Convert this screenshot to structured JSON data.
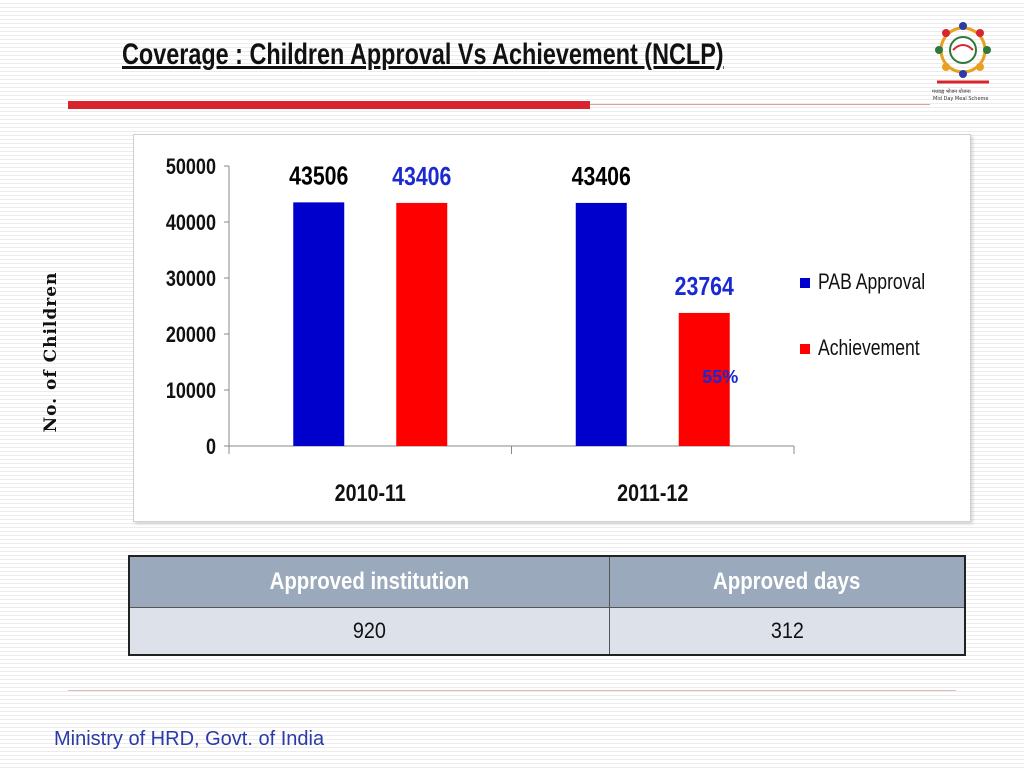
{
  "slide": {
    "title": "Coverage : Children Approval Vs Achievement (NCLP)",
    "footer": "Ministry of HRD, Govt. of India",
    "logo_text_line1": "मध्याह्न भोजन योजना",
    "logo_text_line2": "Mid Day Meal Scheme"
  },
  "chart_data": {
    "type": "bar",
    "title": "",
    "xlabel": "",
    "ylabel": "No. of Children",
    "categories": [
      "2010-11",
      "2011-12"
    ],
    "series": [
      {
        "name": "PAB Approval",
        "values": [
          43506,
          43406
        ],
        "color": "#0000cc",
        "label_color": "#000000"
      },
      {
        "name": "Achievement",
        "values": [
          43406,
          23764
        ],
        "color": "#ff0000",
        "label_color": "#1a2ad0"
      }
    ],
    "yticks": [
      0,
      10000,
      20000,
      30000,
      40000,
      50000
    ],
    "ylim": [
      0,
      50000
    ],
    "grid": false,
    "legend_position": "right",
    "annotations": [
      {
        "text": "55%",
        "category": "2011-12",
        "series": "Achievement",
        "color": "#1a2ad0"
      }
    ]
  },
  "table": {
    "headers": [
      "Approved institution",
      "Approved days"
    ],
    "rows": [
      [
        "920",
        "312"
      ]
    ]
  }
}
